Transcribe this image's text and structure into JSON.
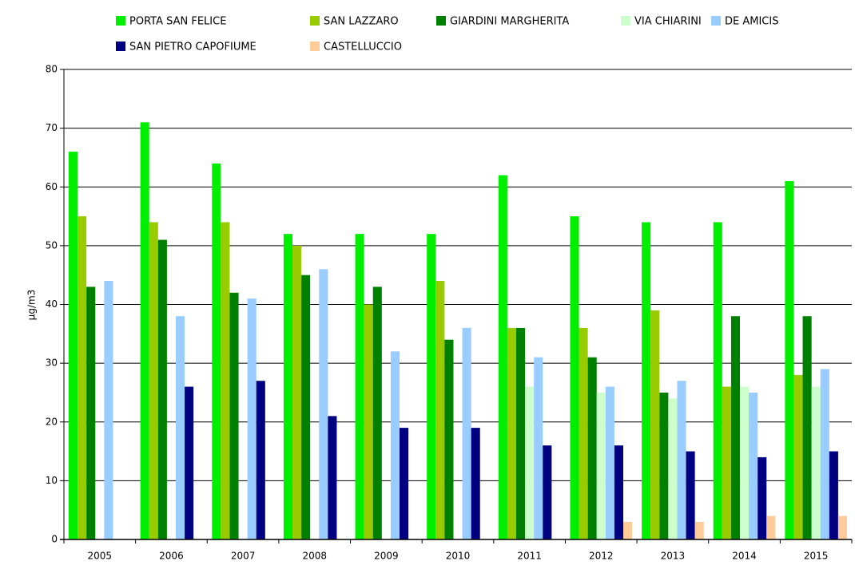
{
  "chart_data": {
    "type": "bar",
    "y_label": "µg/m3",
    "categories": [
      "2005",
      "2006",
      "2007",
      "2008",
      "2009",
      "2010",
      "2011",
      "2012",
      "2013",
      "2014",
      "2015"
    ],
    "series": [
      {
        "name": "PORTA SAN FELICE",
        "color": "#00ee00",
        "values": [
          66,
          71,
          64,
          52,
          52,
          52,
          62,
          55,
          54,
          54,
          61
        ]
      },
      {
        "name": "SAN LAZZARO",
        "color": "#99cc00",
        "values": [
          55,
          54,
          54,
          50,
          40,
          44,
          36,
          36,
          39,
          26,
          28
        ]
      },
      {
        "name": "GIARDINI MARGHERITA",
        "color": "#008000",
        "values": [
          43,
          51,
          42,
          45,
          43,
          34,
          36,
          31,
          25,
          38,
          38
        ]
      },
      {
        "name": "VIA CHIARINI",
        "color": "#ccffcc",
        "values": [
          null,
          null,
          null,
          null,
          null,
          null,
          26,
          25,
          24,
          26,
          26
        ]
      },
      {
        "name": "DE AMICIS",
        "color": "#99ccff",
        "values": [
          44,
          38,
          41,
          46,
          32,
          36,
          31,
          26,
          27,
          25,
          29
        ]
      },
      {
        "name": "SAN PIETRO CAPOFIUME",
        "color": "#000080",
        "values": [
          null,
          26,
          27,
          21,
          19,
          19,
          16,
          16,
          15,
          14,
          15
        ]
      },
      {
        "name": "CASTELLUCCIO",
        "color": "#ffcc99",
        "values": [
          null,
          null,
          null,
          null,
          null,
          null,
          null,
          3,
          3,
          4,
          4
        ]
      }
    ],
    "ylim": [
      0,
      80
    ],
    "yticks": [
      0,
      10,
      20,
      30,
      40,
      50,
      60,
      70,
      80
    ],
    "grid": true
  }
}
